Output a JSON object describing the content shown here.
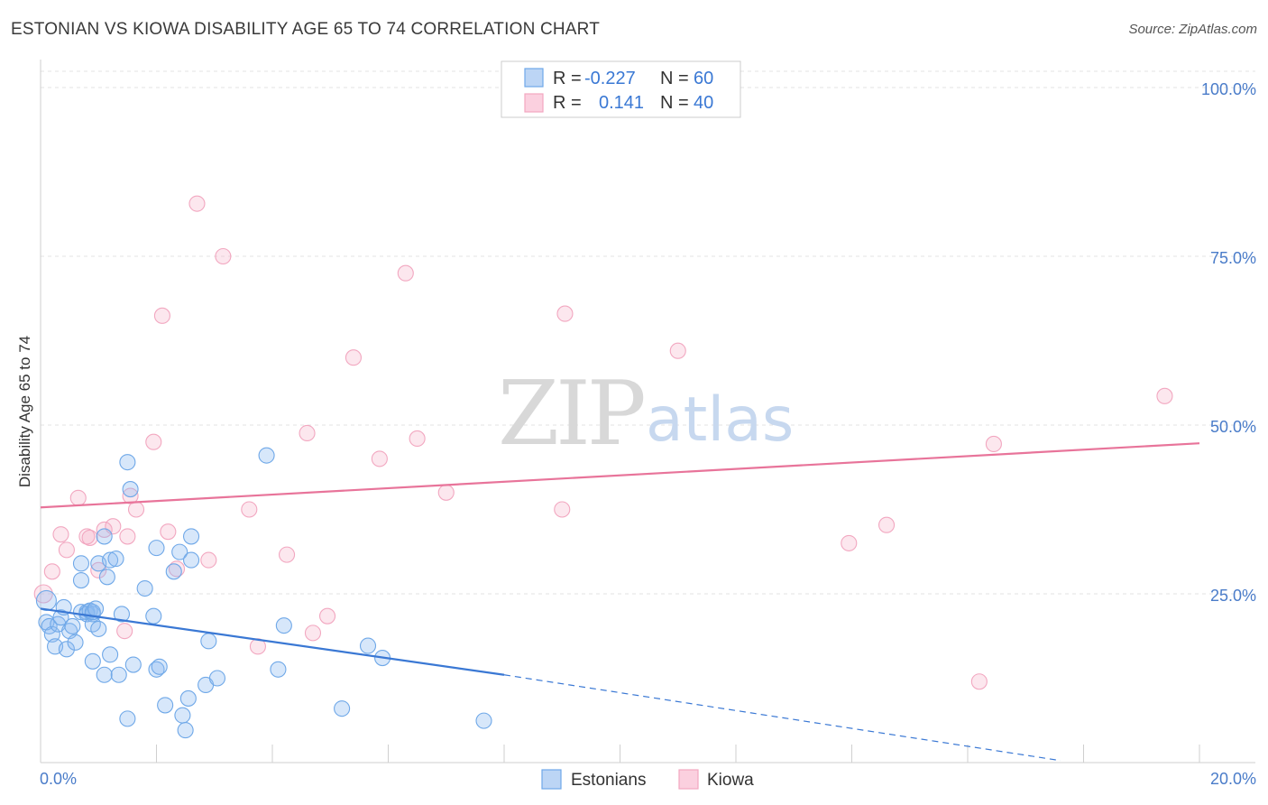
{
  "title": "ESTONIAN VS KIOWA DISABILITY AGE 65 TO 74 CORRELATION CHART",
  "source": "Source: ZipAtlas.com",
  "watermark": {
    "zip": "ZIP",
    "atlas": "atlas"
  },
  "colors": {
    "blue": "#6fa8e8",
    "blue_line": "#3a78d4",
    "pink": "#f2a7c0",
    "pink_line": "#e8749a",
    "tick": "#4a7cc9"
  },
  "legend": {
    "rows": [
      {
        "r_label": "R =",
        "r_value": "-0.227",
        "n_label": "N =",
        "n_value": "60"
      },
      {
        "r_label": "R =",
        "r_value": "0.141",
        "n_label": "N =",
        "n_value": "40"
      }
    ]
  },
  "chart_data": {
    "type": "scatter",
    "title": "ESTONIAN VS KIOWA DISABILITY AGE 65 TO 74 CORRELATION CHART",
    "xlabel": "",
    "ylabel": "Disability Age 65 to 74",
    "xlim": [
      0,
      20
    ],
    "ylim": [
      0,
      100
    ],
    "x_tick_labels": [
      {
        "value": 0,
        "label": "0.0%"
      },
      {
        "value": 20,
        "label": "20.0%"
      }
    ],
    "y_tick_labels": [
      {
        "value": 25,
        "label": "25.0%"
      },
      {
        "value": 50,
        "label": "50.0%"
      },
      {
        "value": 75,
        "label": "75.0%"
      },
      {
        "value": 100,
        "label": "100.0%"
      }
    ],
    "series": [
      {
        "name": "Estonians",
        "color": "#6fa8e8",
        "r": -0.227,
        "n": 60,
        "trend": {
          "x0": 0,
          "y0": 22.8,
          "x1": 8.0,
          "y1": 13.0,
          "dash_to_x": 17.6,
          "dash_to_y": 0.3
        },
        "points": [
          [
            0.1,
            24.0
          ],
          [
            0.1,
            20.8
          ],
          [
            0.15,
            20.2
          ],
          [
            0.2,
            19.0
          ],
          [
            0.25,
            17.2
          ],
          [
            0.3,
            20.5
          ],
          [
            0.35,
            21.5
          ],
          [
            0.4,
            23.0
          ],
          [
            0.45,
            16.8
          ],
          [
            0.5,
            19.5
          ],
          [
            0.55,
            20.2
          ],
          [
            0.6,
            17.8
          ],
          [
            0.7,
            22.3
          ],
          [
            0.7,
            29.5
          ],
          [
            0.7,
            27.0
          ],
          [
            0.8,
            22.3
          ],
          [
            0.8,
            22.0
          ],
          [
            0.85,
            22.5
          ],
          [
            0.9,
            22.0
          ],
          [
            0.9,
            20.5
          ],
          [
            0.9,
            22.3
          ],
          [
            0.95,
            22.8
          ],
          [
            0.9,
            15.0
          ],
          [
            1.0,
            19.8
          ],
          [
            1.0,
            29.5
          ],
          [
            1.1,
            13.0
          ],
          [
            1.1,
            33.5
          ],
          [
            1.15,
            27.5
          ],
          [
            1.2,
            30.0
          ],
          [
            1.2,
            16.0
          ],
          [
            1.3,
            30.2
          ],
          [
            1.35,
            13.0
          ],
          [
            1.4,
            22.0
          ],
          [
            1.5,
            44.5
          ],
          [
            1.5,
            6.5
          ],
          [
            1.55,
            40.5
          ],
          [
            1.6,
            14.5
          ],
          [
            1.8,
            25.8
          ],
          [
            1.95,
            21.7
          ],
          [
            2.0,
            31.8
          ],
          [
            2.0,
            13.8
          ],
          [
            2.05,
            14.2
          ],
          [
            2.15,
            8.5
          ],
          [
            2.3,
            28.3
          ],
          [
            2.4,
            31.2
          ],
          [
            2.45,
            7.0
          ],
          [
            2.5,
            4.8
          ],
          [
            2.55,
            9.5
          ],
          [
            2.6,
            30.0
          ],
          [
            2.6,
            33.5
          ],
          [
            2.85,
            11.5
          ],
          [
            2.9,
            18.0
          ],
          [
            3.05,
            12.5
          ],
          [
            3.9,
            45.5
          ],
          [
            4.1,
            13.8
          ],
          [
            4.2,
            20.3
          ],
          [
            5.2,
            8.0
          ],
          [
            5.65,
            17.3
          ],
          [
            5.9,
            15.5
          ],
          [
            7.65,
            6.2
          ]
        ]
      },
      {
        "name": "Kiowa",
        "color": "#f2a7c0",
        "r": 0.141,
        "n": 40,
        "trend": {
          "x0": 0,
          "y0": 37.8,
          "x1": 20,
          "y1": 47.3
        },
        "points": [
          [
            0.05,
            25.0
          ],
          [
            0.2,
            28.3
          ],
          [
            0.35,
            33.8
          ],
          [
            0.45,
            31.5
          ],
          [
            0.65,
            39.2
          ],
          [
            0.8,
            33.5
          ],
          [
            0.85,
            33.3
          ],
          [
            1.0,
            28.5
          ],
          [
            1.1,
            34.5
          ],
          [
            1.25,
            35.0
          ],
          [
            1.45,
            19.5
          ],
          [
            1.5,
            33.5
          ],
          [
            1.55,
            39.5
          ],
          [
            1.65,
            37.5
          ],
          [
            1.95,
            47.5
          ],
          [
            2.1,
            66.2
          ],
          [
            2.2,
            34.2
          ],
          [
            2.35,
            28.7
          ],
          [
            2.7,
            82.8
          ],
          [
            2.9,
            30.0
          ],
          [
            3.15,
            75.0
          ],
          [
            3.6,
            37.5
          ],
          [
            3.75,
            17.2
          ],
          [
            4.25,
            30.8
          ],
          [
            4.6,
            48.8
          ],
          [
            4.7,
            19.2
          ],
          [
            4.95,
            21.7
          ],
          [
            5.4,
            60.0
          ],
          [
            5.85,
            45.0
          ],
          [
            6.3,
            72.5
          ],
          [
            6.5,
            48.0
          ],
          [
            7.0,
            40.0
          ],
          [
            9.0,
            37.5
          ],
          [
            9.05,
            66.5
          ],
          [
            11.0,
            61.0
          ],
          [
            13.95,
            32.5
          ],
          [
            14.6,
            35.2
          ],
          [
            16.2,
            12.0
          ],
          [
            16.45,
            47.2
          ],
          [
            19.4,
            54.3
          ]
        ]
      }
    ]
  },
  "bottom_legend": [
    {
      "label": "Estonians"
    },
    {
      "label": "Kiowa"
    }
  ]
}
